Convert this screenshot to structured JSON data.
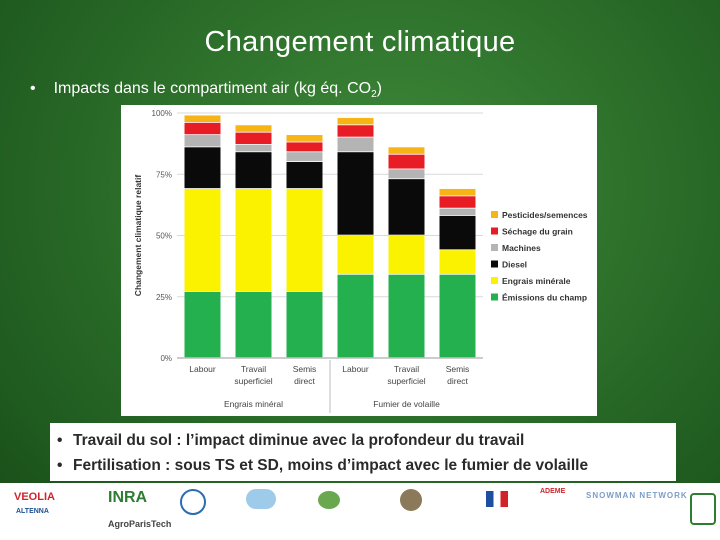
{
  "slide": {
    "title": "Changement climatique",
    "bullet_intro": "Impacts dans le compartiment air (kg éq. CO",
    "bullet_sub": "2",
    "bullet_close": ")"
  },
  "notes": [
    "Travail du sol : l’impact diminue avec la profondeur du travail",
    "Fertilisation : sous TS et SD, moins d’impact avec le fumier de volaille"
  ],
  "logos": {
    "veolia": "VEOLIA",
    "altenna": "ALTENNA",
    "inra": "INRA",
    "agroparistech": "AgroParisTech",
    "snowman": "SNOWMAN NETWORK",
    "ademe": "ADEME"
  },
  "colors": {
    "pesticides": "#f6b417",
    "sechage": "#e81c24",
    "machines": "#b4b4b4",
    "diesel": "#0a0a0a",
    "engrais": "#fbf200",
    "emissions": "#25b04f"
  },
  "chart_data": {
    "type": "bar",
    "stacked": true,
    "title": "",
    "ylabel": "Changement climatique relatif",
    "ylim": [
      0,
      100
    ],
    "yticks": [
      "0%",
      "25%",
      "50%",
      "75%",
      "100%"
    ],
    "grid": true,
    "legend": "right",
    "categories": [
      "Labour",
      "Travail superficiel",
      "Semis direct",
      "Labour",
      "Travail superficiel",
      "Semis direct"
    ],
    "category_lines": [
      [
        "Labour"
      ],
      [
        "Travail",
        "superficiel"
      ],
      [
        "Semis",
        "direct"
      ],
      [
        "Labour"
      ],
      [
        "Travail",
        "superficiel"
      ],
      [
        "Semis",
        "direct"
      ]
    ],
    "groups": [
      {
        "label": "Engrais minéral",
        "categories": [
          0,
          1,
          2
        ]
      },
      {
        "label": "Fumier de volaille",
        "categories": [
          3,
          4,
          5
        ]
      }
    ],
    "series": [
      {
        "name": "Émissions du champ",
        "color_key": "emissions",
        "values": [
          27,
          27,
          27,
          34,
          34,
          34
        ]
      },
      {
        "name": "Engrais minérale",
        "color_key": "engrais",
        "values": [
          42,
          42,
          42,
          16,
          16,
          10
        ]
      },
      {
        "name": "Diesel",
        "color_key": "diesel",
        "values": [
          17,
          15,
          11,
          34,
          23,
          14
        ]
      },
      {
        "name": "Machines",
        "color_key": "machines",
        "values": [
          5,
          3,
          4,
          6,
          4,
          3
        ]
      },
      {
        "name": "Séchage du grain",
        "color_key": "sechage",
        "values": [
          5,
          5,
          4,
          5,
          6,
          5
        ]
      },
      {
        "name": "Pesticides/semences",
        "color_key": "pesticides",
        "values": [
          3,
          3,
          3,
          3,
          3,
          3
        ]
      }
    ]
  }
}
